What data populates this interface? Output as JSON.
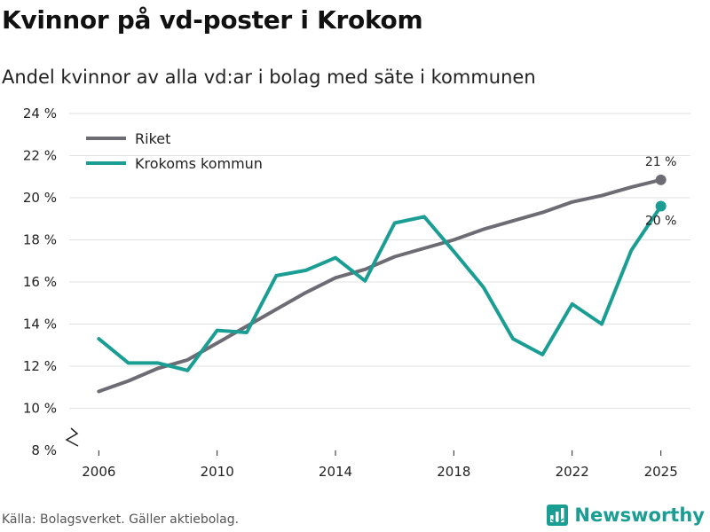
{
  "title": "Kvinnor på vd-poster i Krokom",
  "subtitle": "Andel kvinnor av alla vd:ar i bolag med säte i kommunen",
  "source": "Källa: Bolagsverket. Gäller aktiebolag.",
  "brand": "Newsworthy",
  "colors": {
    "riket": "#6d6b73",
    "krokom": "#1a9e94",
    "grid": "#e2e2e2",
    "brand": "#1a9e94"
  },
  "chart_data": {
    "type": "line",
    "title": "Kvinnor på vd-poster i Krokom",
    "xlabel": "",
    "ylabel": "",
    "ylim": [
      8,
      24
    ],
    "yticks": [
      8,
      10,
      12,
      14,
      16,
      18,
      20,
      22,
      24
    ],
    "ytick_labels": [
      "8 %",
      "10 %",
      "12 %",
      "14 %",
      "16 %",
      "18 %",
      "20 %",
      "22 %",
      "24 %"
    ],
    "xticks": [
      2006,
      2010,
      2014,
      2018,
      2022,
      2025
    ],
    "xtick_labels": [
      "2006",
      "2010",
      "2014",
      "2018",
      "2022",
      "2025"
    ],
    "legend_position": "top-left",
    "series": [
      {
        "name": "Riket",
        "color": "#6d6b73",
        "x": [
          2006,
          2007,
          2008,
          2009,
          2010,
          2011,
          2012,
          2013,
          2014,
          2015,
          2016,
          2017,
          2018,
          2019,
          2020,
          2021,
          2022,
          2023,
          2024,
          2025
        ],
        "values": [
          10.8,
          11.3,
          11.9,
          12.3,
          13.1,
          13.9,
          14.7,
          15.5,
          16.2,
          16.6,
          17.2,
          17.6,
          18.0,
          18.5,
          18.9,
          19.3,
          19.8,
          20.1,
          20.5,
          20.85
        ],
        "end_label": "21 %"
      },
      {
        "name": "Krokoms kommun",
        "color": "#1a9e94",
        "x": [
          2006,
          2007,
          2008,
          2009,
          2010,
          2011,
          2012,
          2013,
          2014,
          2015,
          2016,
          2017,
          2018,
          2019,
          2020,
          2021,
          2022,
          2023,
          2024,
          2025
        ],
        "values": [
          13.3,
          12.15,
          12.15,
          11.8,
          13.7,
          13.6,
          16.3,
          16.55,
          17.15,
          16.05,
          18.8,
          19.1,
          17.45,
          15.75,
          13.3,
          12.55,
          14.95,
          14.0,
          17.5,
          19.6
        ],
        "end_label": "20 %"
      }
    ]
  }
}
